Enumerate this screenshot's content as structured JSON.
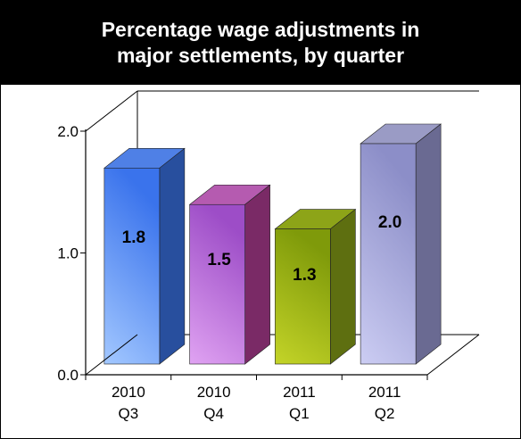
{
  "title": "Percentage wage adjustments in\nmajor settlements, by quarter",
  "chart_data": {
    "type": "bar",
    "title": "Percentage wage adjustments in\nmajor settlements, by quarter",
    "categories": [
      [
        "2010",
        "Q3"
      ],
      [
        "2010",
        "Q4"
      ],
      [
        "2011",
        "Q1"
      ],
      [
        "2011",
        "Q2"
      ]
    ],
    "values": [
      1.8,
      1.5,
      1.3,
      2.0
    ],
    "data_labels": [
      "1.8",
      "1.5",
      "1.3",
      "2.0"
    ],
    "y_ticks": [
      "0.0",
      "1.0",
      "2.0"
    ],
    "ylim": [
      0,
      2
    ],
    "xlabel": "",
    "ylabel": "",
    "grid": false,
    "style": "3d",
    "colors": {
      "bar_front_light": [
        "#a3c8ff",
        "#e0a3f2",
        "#c4d428",
        "#cccdf3"
      ],
      "bar_front_dark": [
        "#3a73ec",
        "#9d4dc7",
        "#7f9a0a",
        "#8c8ec8"
      ],
      "bar_side": [
        "#284f9e",
        "#7a2a66",
        "#5e6f10",
        "#6a6a92"
      ],
      "bar_top": [
        "#4f80e6",
        "#b55bb0",
        "#8da418",
        "#9a9bc5"
      ],
      "axis": "#000000"
    }
  }
}
